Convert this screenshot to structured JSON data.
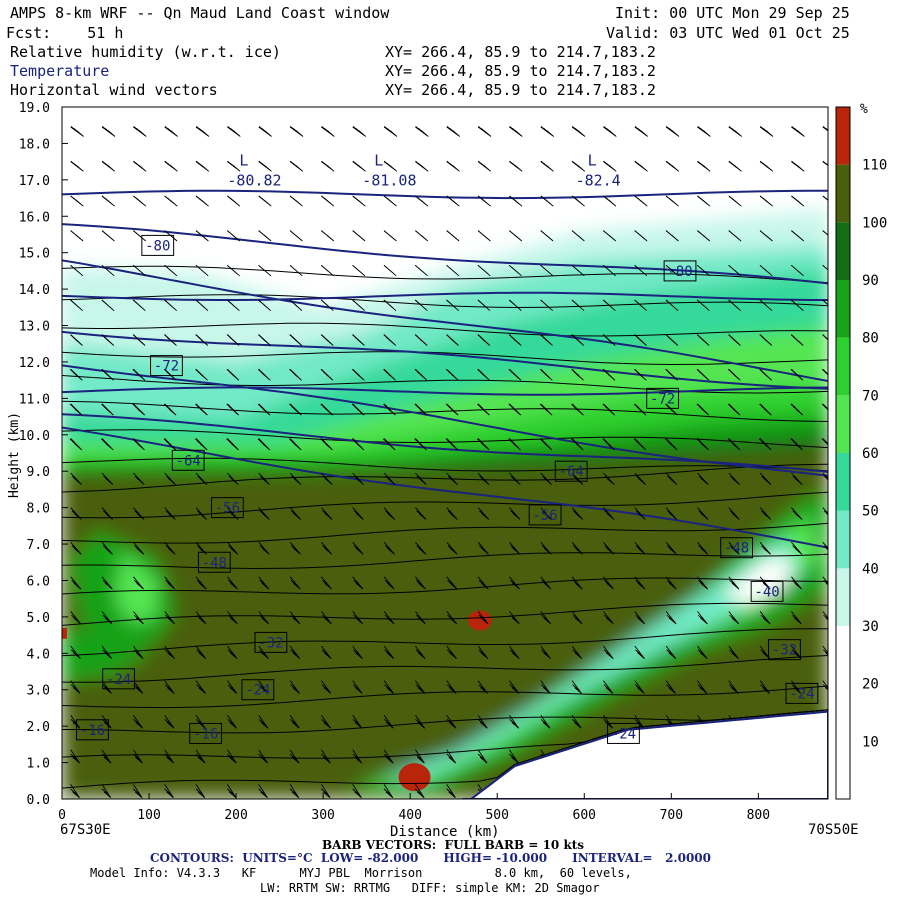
{
  "header": {
    "title": "AMPS 8-km WRF -- Qn Maud Land Coast window",
    "init": "Init: 00 UTC Mon 29 Sep 25",
    "fcst": "Fcst:    51 h",
    "valid": "Valid: 03 UTC Wed 01 Oct 25",
    "fields": [
      {
        "name": "Relative humidity (w.r.t. ice)",
        "xy": "XY= 266.4, 85.9 to 214.7,183.2"
      },
      {
        "name": "Temperature",
        "xy": "XY= 266.4, 85.9 to 214.7,183.2"
      },
      {
        "name": "Horizontal wind vectors",
        "xy": "XY= 266.4, 85.9 to 214.7,183.2"
      }
    ]
  },
  "chart_data": {
    "type": "heatmap",
    "xlabel": "Distance (km)",
    "ylabel": "Height (km)",
    "xlim": [
      0,
      880
    ],
    "ylim": [
      0,
      19
    ],
    "x_ticks": [
      0,
      100,
      200,
      300,
      400,
      500,
      600,
      700,
      800
    ],
    "y_ticks": [
      "0.0",
      "1.0",
      "2.0",
      "3.0",
      "4.0",
      "5.0",
      "6.0",
      "7.0",
      "8.0",
      "9.0",
      "10.0",
      "11.0",
      "12.0",
      "13.0",
      "14.0",
      "15.0",
      "16.0",
      "17.0",
      "18.0",
      "19.0"
    ],
    "x_start_label": "67S30E",
    "x_end_label": "70S50E",
    "colorbar": {
      "unit": "%",
      "tick_labels": [
        "10",
        "20",
        "30",
        "40",
        "50",
        "60",
        "70",
        "80",
        "90",
        "100",
        "110"
      ],
      "levels": [
        0,
        10,
        20,
        30,
        40,
        50,
        60,
        70,
        80,
        90,
        100,
        110,
        120
      ],
      "colors": [
        "#ffffff",
        "#ffffff",
        "#ffffff",
        "#c8f7ea",
        "#72e9c7",
        "#36d99a",
        "#54e553",
        "#2ed02f",
        "#17a217",
        "#136e13",
        "#4a5f0c",
        "#b8250b"
      ]
    },
    "temperature_contours": [
      {
        "label": "-80",
        "x": 110,
        "y": 15.2
      },
      {
        "label": "-80",
        "x": 710,
        "y": 14.5
      },
      {
        "label": "-72",
        "x": 120,
        "y": 11.9
      },
      {
        "label": "-72",
        "x": 690,
        "y": 11.0
      },
      {
        "label": "-64",
        "x": 145,
        "y": 9.3
      },
      {
        "label": "-64",
        "x": 585,
        "y": 9.0
      },
      {
        "label": "-56",
        "x": 190,
        "y": 8.0
      },
      {
        "label": "-56",
        "x": 555,
        "y": 7.8
      },
      {
        "label": "-48",
        "x": 175,
        "y": 6.5
      },
      {
        "label": "-48",
        "x": 775,
        "y": 6.9
      },
      {
        "label": "-40",
        "x": 810,
        "y": 5.7
      },
      {
        "label": "-32",
        "x": 240,
        "y": 4.3
      },
      {
        "label": "-32",
        "x": 830,
        "y": 4.1
      },
      {
        "label": "-24",
        "x": 65,
        "y": 3.3
      },
      {
        "label": "-24",
        "x": 225,
        "y": 3.0
      },
      {
        "label": "-24",
        "x": 850,
        "y": 2.9
      },
      {
        "label": "-16",
        "x": 35,
        "y": 1.9
      },
      {
        "label": "-16",
        "x": 165,
        "y": 1.8
      },
      {
        "label": "-24",
        "x": 645,
        "y": 1.8
      }
    ],
    "lows": [
      {
        "label": "L",
        "value": "-80.82",
        "x": 190,
        "y": 17.4
      },
      {
        "label": "L",
        "value": "-81.08",
        "x": 345,
        "y": 17.4
      },
      {
        "label": "L",
        "value": "-82.4",
        "x": 590,
        "y": 17.4
      }
    ],
    "contour_interval": 2.0,
    "low": -82.0,
    "high": -10.0
  },
  "footer": {
    "barb": "BARB VECTORS:  FULL BARB = 10 kts",
    "contours": "CONTOURS:  UNITS=°C  LOW= -82.000      HIGH= -10.000      INTERVAL=   2.0000",
    "model1": "Model Info: V4.3.3   KF      MYJ PBL  Morrison          8.0 km,  60 levels,",
    "model2": "LW: RRTM SW: RRTMG   DIFF: simple KM: 2D Smagor"
  }
}
